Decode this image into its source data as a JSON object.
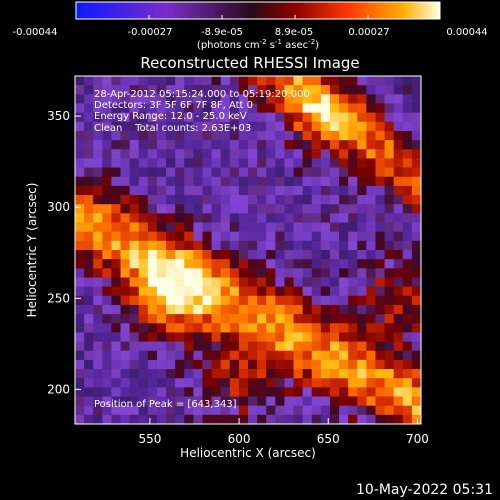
{
  "colorbar": {
    "ticks": [
      "-0.00044",
      "-0.00027",
      "-8.9e-05",
      "8.9e-05",
      "0.00027",
      "0.00044"
    ],
    "units_main": "(photons cm",
    "units_exp1": "-2",
    "units_mid": " s",
    "units_exp2": "-1",
    "units_mid2": " asec",
    "units_exp3": "-2",
    "units_end": ")"
  },
  "chart_data": {
    "type": "heatmap",
    "title": "Reconstructed RHESSI Image",
    "xlabel": "Heliocentric X (arcsec)",
    "ylabel": "Heliocentric Y (arcsec)",
    "xlim": [
      508,
      702
    ],
    "ylim": [
      181,
      372
    ],
    "xticks": [
      550,
      600,
      650,
      700
    ],
    "yticks": [
      200,
      250,
      300,
      350
    ],
    "value_range": [
      -0.00044,
      0.00044
    ],
    "bright_features": [
      {
        "x": 560,
        "y": 250
      },
      {
        "x": 600,
        "y": 205
      },
      {
        "x": 645,
        "y": 350
      },
      {
        "x": 690,
        "y": 250
      }
    ],
    "info_lines": [
      "28-Apr-2012 05:15:24.000 to 05:19:20.000",
      "Detectors: 3F 5F 6F 7F 8F, Att 0",
      "Energy Range: 12.0 - 25.0 keV",
      "Clean    Total counts: 2.63E+03"
    ],
    "peak_label": "Position of Peak = [643,343]"
  },
  "footer_date": "10-May-2022 05:31"
}
